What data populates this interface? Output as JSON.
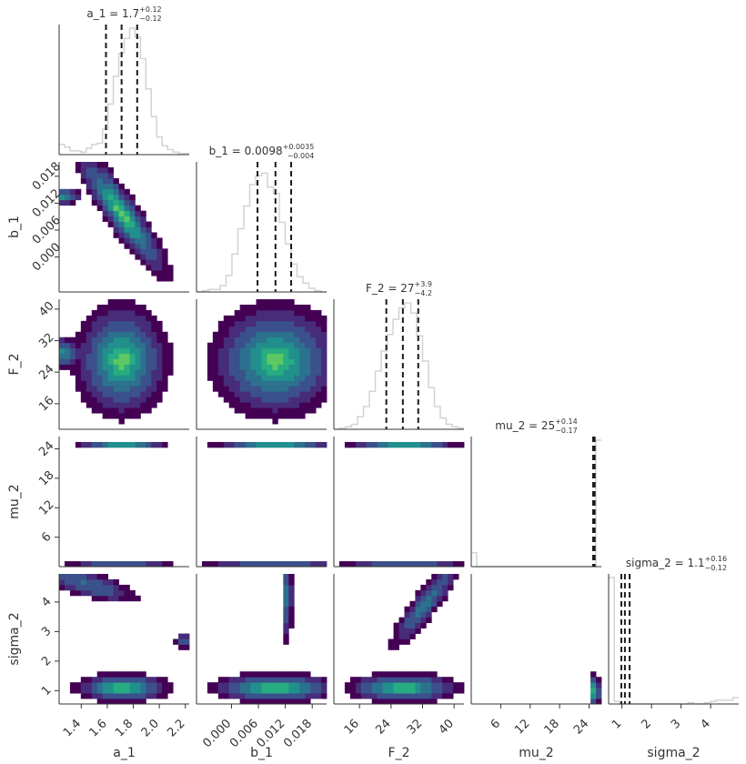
{
  "chart_data": {
    "type": "corner",
    "parameters": [
      "a_1",
      "b_1",
      "F_2",
      "mu_2",
      "sigma_2"
    ],
    "axis_labels": [
      "a_1",
      "b_1",
      "F_2",
      "mu_2",
      "sigma_2"
    ],
    "ranges": [
      [
        1.23,
        2.23
      ],
      [
        -0.0078,
        0.0212
      ],
      [
        9.5,
        42.5
      ],
      [
        0,
        26.5
      ],
      [
        0.55,
        4.95
      ]
    ],
    "ticks": [
      {
        "values": [
          1.4,
          1.6,
          1.8,
          2.0,
          2.2
        ],
        "labels": [
          "1.4",
          "1.6",
          "1.8",
          "2.0",
          "2.2"
        ]
      },
      {
        "values": [
          0.0,
          0.006,
          0.012,
          0.018
        ],
        "labels": [
          "0.000",
          "0.006",
          "0.012",
          "0.018"
        ]
      },
      {
        "values": [
          16,
          24,
          32,
          40
        ],
        "labels": [
          "16",
          "24",
          "32",
          "40"
        ]
      },
      {
        "values": [
          6,
          12,
          18,
          24
        ],
        "labels": [
          "6",
          "12",
          "18",
          "24"
        ]
      },
      {
        "values": [
          1,
          2,
          3,
          4
        ],
        "labels": [
          "1",
          "2",
          "3",
          "4"
        ]
      }
    ],
    "titles": [
      {
        "name": "a_1",
        "median": "1.7",
        "plus": "+0.12",
        "minus": "−0.12"
      },
      {
        "name": "b_1",
        "median": "0.0098",
        "plus": "+0.0035",
        "minus": "−0.004"
      },
      {
        "name": "F_2",
        "median": "27",
        "plus": "+3.9",
        "minus": "−4.2"
      },
      {
        "name": "mu_2",
        "median": "25",
        "plus": "+0.14",
        "minus": "−0.17"
      },
      {
        "name": "sigma_2",
        "median": "1.1",
        "plus": "+0.16",
        "minus": "−0.12"
      }
    ],
    "quantiles": [
      [
        1.59,
        1.71,
        1.83
      ],
      [
        0.0058,
        0.0098,
        0.0133
      ],
      [
        22.8,
        27.0,
        30.9
      ],
      [
        24.83,
        25.0,
        25.14
      ],
      [
        0.98,
        1.1,
        1.26
      ]
    ],
    "histograms": [
      [
        0.08,
        0.06,
        0.03,
        0.03,
        0.02,
        0.05,
        0.08,
        0.09,
        0.2,
        0.4,
        0.62,
        0.8,
        0.92,
        1.0,
        0.93,
        0.76,
        0.52,
        0.3,
        0.14,
        0.07,
        0.04,
        0.02,
        0.01,
        0.01
      ],
      [
        0.0,
        0.01,
        0.02,
        0.02,
        0.05,
        0.13,
        0.3,
        0.5,
        0.68,
        0.85,
        0.92,
        0.94,
        0.83,
        0.78,
        0.55,
        0.38,
        0.22,
        0.12,
        0.07,
        0.03,
        0.01,
        0.0
      ],
      [
        0.0,
        0.01,
        0.02,
        0.04,
        0.1,
        0.18,
        0.3,
        0.46,
        0.62,
        0.75,
        0.87,
        0.96,
        1.0,
        0.92,
        0.74,
        0.54,
        0.33,
        0.18,
        0.09,
        0.04,
        0.02,
        0.01
      ],
      [
        0.11,
        0.0,
        0.0,
        0.0,
        0.0,
        0.0,
        0.0,
        0.0,
        0.0,
        0.0,
        0.0,
        0.0,
        0.0,
        0.0,
        0.0,
        0.0,
        0.0,
        0.0,
        0.0,
        0.0,
        0.0,
        0.0,
        0.0,
        1.0
      ],
      [
        1.0,
        0.02,
        0.0,
        0.0,
        0.0,
        0.0,
        0.0,
        0.0,
        0.0,
        0.0,
        0.0,
        0.0,
        0.0,
        0.0,
        0.01,
        0.0,
        0.0,
        0.01,
        0.02,
        0.03,
        0.03,
        0.03,
        0.05
      ]
    ],
    "contour_colors": [
      "#440154",
      "#472c7a",
      "#3b518b",
      "#2c718e",
      "#21908d",
      "#27ad81",
      "#5cc863",
      "#fde725"
    ],
    "hist_color": "#d3d3d3",
    "quantile_line_color": "#1a1a1a",
    "legend": "none",
    "grid": false
  }
}
